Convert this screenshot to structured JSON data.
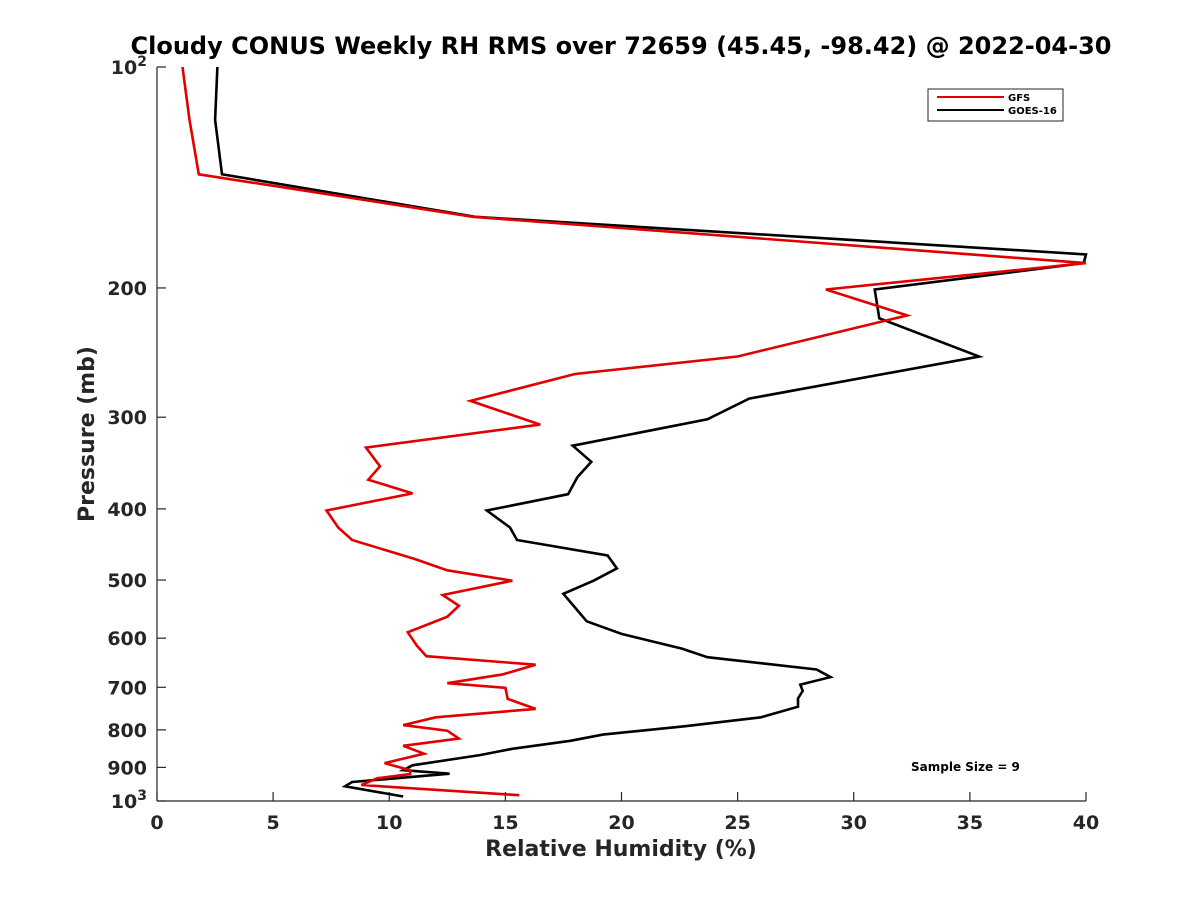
{
  "chart_data": {
    "type": "line",
    "title": "Cloudy CONUS Weekly RH RMS over 72659 (45.45, -98.42) @ 2022-04-30",
    "xlabel": "Relative Humidity (%)",
    "ylabel": "Pressure (mb)",
    "xlim": [
      0,
      40
    ],
    "ylim": [
      100,
      1000
    ],
    "y_scale": "log",
    "y_reversed": true,
    "grid": false,
    "legend_position": "top-right",
    "x_ticks": [
      0,
      5,
      10,
      15,
      20,
      25,
      30,
      35,
      40
    ],
    "x_tick_labels": [
      "0",
      "5",
      "10",
      "15",
      "20",
      "25",
      "30",
      "35",
      "40"
    ],
    "y_ticks": [
      {
        "value": 100,
        "base": "10",
        "exp": "2"
      },
      {
        "value": 200,
        "label": "200"
      },
      {
        "value": 300,
        "label": "300"
      },
      {
        "value": 400,
        "label": "400"
      },
      {
        "value": 500,
        "label": "500"
      },
      {
        "value": 600,
        "label": "600"
      },
      {
        "value": 700,
        "label": "700"
      },
      {
        "value": 800,
        "label": "800"
      },
      {
        "value": 900,
        "label": "900"
      },
      {
        "value": 1000,
        "base": "10",
        "exp": "3"
      }
    ],
    "series": [
      {
        "name": "GFS",
        "color": "#e10000",
        "points": [
          [
            1.1,
            100
          ],
          [
            1.4,
            118
          ],
          [
            1.8,
            140
          ],
          [
            13.6,
            160
          ],
          [
            40.0,
            185
          ],
          [
            28.8,
            201
          ],
          [
            32.3,
            218
          ],
          [
            25.0,
            248
          ],
          [
            18.0,
            262
          ],
          [
            13.5,
            285
          ],
          [
            16.5,
            307
          ],
          [
            9.0,
            330
          ],
          [
            9.6,
            350
          ],
          [
            9.1,
            365
          ],
          [
            11.0,
            381
          ],
          [
            7.3,
            402
          ],
          [
            7.8,
            424
          ],
          [
            8.4,
            441
          ],
          [
            11.1,
            468
          ],
          [
            12.5,
            485
          ],
          [
            15.3,
            501
          ],
          [
            12.3,
            524
          ],
          [
            13.0,
            542
          ],
          [
            12.5,
            561
          ],
          [
            10.8,
            589
          ],
          [
            11.2,
            615
          ],
          [
            11.6,
            635
          ],
          [
            16.3,
            652
          ],
          [
            14.9,
            672
          ],
          [
            12.5,
            691
          ],
          [
            15.0,
            701
          ],
          [
            15.1,
            726
          ],
          [
            16.3,
            749
          ],
          [
            12.0,
            769
          ],
          [
            10.6,
            788
          ],
          [
            12.5,
            802
          ],
          [
            13.0,
            822
          ],
          [
            10.6,
            841
          ],
          [
            11.5,
            862
          ],
          [
            9.8,
            888
          ],
          [
            10.9,
            908
          ],
          [
            10.9,
            919
          ],
          [
            9.5,
            931
          ],
          [
            8.8,
            951
          ],
          [
            15.6,
            982
          ]
        ]
      },
      {
        "name": "GOES-16",
        "color": "#000000",
        "points": [
          [
            2.6,
            100
          ],
          [
            2.5,
            118
          ],
          [
            2.8,
            140
          ],
          [
            13.7,
            160
          ],
          [
            40.0,
            180
          ],
          [
            39.9,
            185
          ],
          [
            30.9,
            201
          ],
          [
            31.1,
            220
          ],
          [
            35.4,
            248
          ],
          [
            25.5,
            283
          ],
          [
            23.7,
            302
          ],
          [
            17.9,
            328
          ],
          [
            18.7,
            345
          ],
          [
            18.1,
            362
          ],
          [
            17.7,
            382
          ],
          [
            14.2,
            402
          ],
          [
            15.2,
            424
          ],
          [
            15.5,
            441
          ],
          [
            19.4,
            463
          ],
          [
            19.8,
            482
          ],
          [
            18.8,
            501
          ],
          [
            17.5,
            522
          ],
          [
            18.0,
            545
          ],
          [
            18.5,
            569
          ],
          [
            20.0,
            592
          ],
          [
            22.6,
            620
          ],
          [
            23.7,
            637
          ],
          [
            28.4,
            662
          ],
          [
            29.0,
            678
          ],
          [
            27.7,
            694
          ],
          [
            27.8,
            708
          ],
          [
            27.6,
            725
          ],
          [
            27.6,
            744
          ],
          [
            26.0,
            769
          ],
          [
            22.7,
            791
          ],
          [
            19.2,
            812
          ],
          [
            17.8,
            828
          ],
          [
            15.3,
            849
          ],
          [
            13.9,
            866
          ],
          [
            11.0,
            894
          ],
          [
            10.6,
            908
          ],
          [
            12.6,
            918
          ],
          [
            8.4,
            942
          ],
          [
            8.1,
            955
          ],
          [
            10.6,
            986
          ]
        ]
      }
    ],
    "annotation": "Sample Size = 9"
  }
}
